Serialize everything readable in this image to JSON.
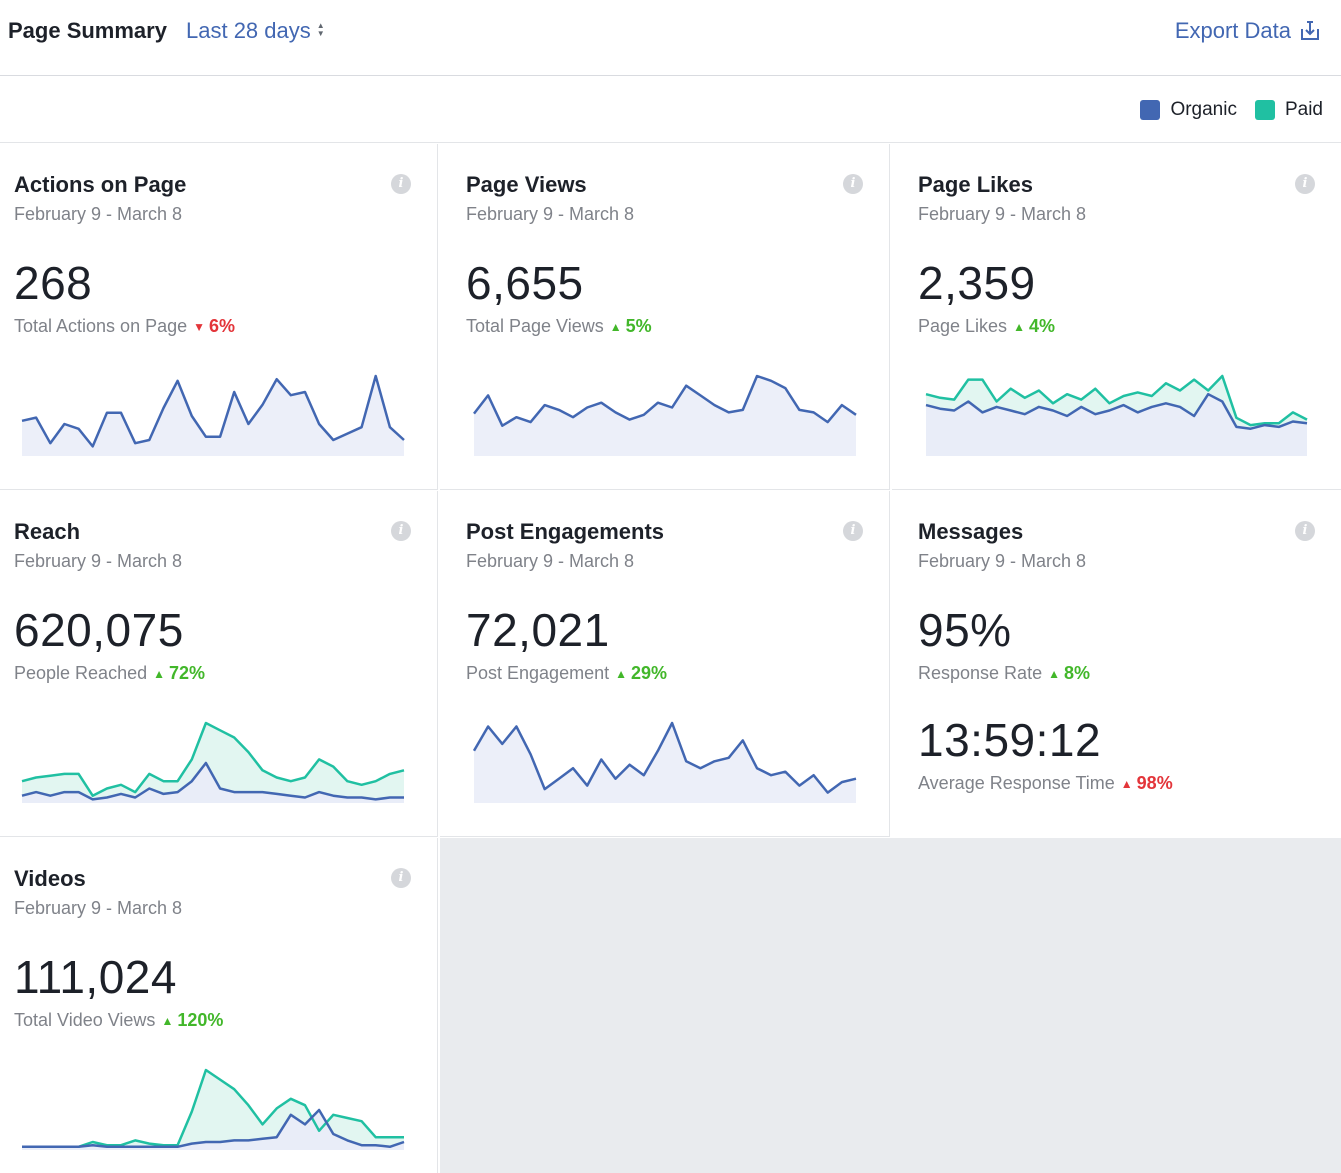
{
  "header": {
    "title": "Page Summary",
    "range": "Last 28 days",
    "export_label": "Export Data"
  },
  "legend": {
    "organic": {
      "label": "Organic",
      "color": "#4267b2"
    },
    "paid": {
      "label": "Paid",
      "color": "#20c0a2"
    }
  },
  "icons": {
    "info": "i",
    "arrow_up": "▲",
    "arrow_down": "▼",
    "sort": [
      "▲",
      "▼"
    ]
  },
  "cards": [
    {
      "title": "Actions on Page",
      "date": "February 9 - March 8",
      "value": "268",
      "sub": "Total Actions on Page",
      "delta": "6%",
      "direction": "down",
      "organic": [
        22,
        24,
        8,
        20,
        17,
        6,
        27,
        27,
        8,
        10,
        30,
        47,
        25,
        12,
        12,
        40,
        20,
        32,
        48,
        38,
        40,
        20,
        10,
        14,
        18,
        50,
        18,
        10
      ],
      "paid": null
    },
    {
      "title": "Page Views",
      "date": "February 9 - March 8",
      "value": "6,655",
      "sub": "Total Page Views",
      "delta": "5%",
      "direction": "up",
      "organic": [
        35,
        50,
        25,
        32,
        28,
        42,
        38,
        32,
        40,
        44,
        36,
        30,
        34,
        44,
        40,
        58,
        50,
        42,
        36,
        38,
        66,
        62,
        56,
        38,
        36,
        28,
        42,
        34
      ],
      "paid": null
    },
    {
      "title": "Page Likes",
      "date": "February 9 - March 8",
      "value": "2,359",
      "sub": "Page Likes",
      "delta": "4%",
      "direction": "up",
      "organic": [
        28,
        26,
        25,
        30,
        24,
        27,
        25,
        23,
        27,
        25,
        22,
        27,
        23,
        25,
        28,
        24,
        27,
        29,
        27,
        22,
        34,
        30,
        16,
        15,
        17,
        16,
        19,
        18
      ],
      "paid": [
        34,
        32,
        31,
        42,
        42,
        30,
        37,
        32,
        36,
        29,
        34,
        31,
        37,
        29,
        33,
        35,
        33,
        40,
        36,
        42,
        36,
        44,
        21,
        17,
        18,
        18,
        24,
        20
      ]
    },
    {
      "title": "Reach",
      "date": "February 9 - March 8",
      "value": "620,075",
      "sub": "People Reached",
      "delta": "72%",
      "direction": "up",
      "organic": [
        4,
        6,
        4,
        6,
        6,
        2,
        3,
        5,
        3,
        8,
        5,
        6,
        12,
        22,
        8,
        6,
        6,
        6,
        5,
        4,
        3,
        6,
        4,
        3,
        3,
        2,
        3,
        3
      ],
      "paid": [
        12,
        14,
        15,
        16,
        16,
        4,
        8,
        10,
        6,
        16,
        12,
        12,
        24,
        44,
        40,
        36,
        28,
        18,
        14,
        12,
        14,
        24,
        20,
        12,
        10,
        12,
        16,
        18
      ]
    },
    {
      "title": "Post Engagements",
      "date": "February 9 - March 8",
      "value": "72,021",
      "sub": "Post Engagement",
      "delta": "29%",
      "direction": "up",
      "organic": [
        30,
        44,
        34,
        44,
        28,
        8,
        14,
        20,
        10,
        25,
        14,
        22,
        16,
        30,
        46,
        24,
        20,
        24,
        26,
        36,
        20,
        16,
        18,
        10,
        16,
        6,
        12,
        14
      ],
      "paid": null
    },
    {
      "title": "Videos",
      "date": "February 9 - March 8",
      "value": "111,024",
      "sub": "Total Video Views",
      "delta": "120%",
      "direction": "up",
      "organic": [
        2,
        2,
        2,
        2,
        2,
        3,
        2,
        2,
        2,
        2,
        2,
        2,
        4,
        5,
        5,
        6,
        6,
        7,
        8,
        22,
        16,
        25,
        10,
        6,
        3,
        3,
        2,
        5
      ],
      "paid": [
        2,
        2,
        2,
        2,
        2,
        5,
        3,
        3,
        6,
        4,
        3,
        3,
        24,
        50,
        44,
        38,
        28,
        16,
        26,
        32,
        28,
        12,
        22,
        20,
        18,
        8,
        8,
        8
      ]
    }
  ],
  "messages": {
    "title": "Messages",
    "date": "February 9 - March 8",
    "rate_value": "95%",
    "rate_label": "Response Rate",
    "rate_delta": "8%",
    "rate_direction": "up",
    "time_value": "13:59:12",
    "time_label": "Average Response Time",
    "time_delta": "98%",
    "time_direction": "down"
  }
}
